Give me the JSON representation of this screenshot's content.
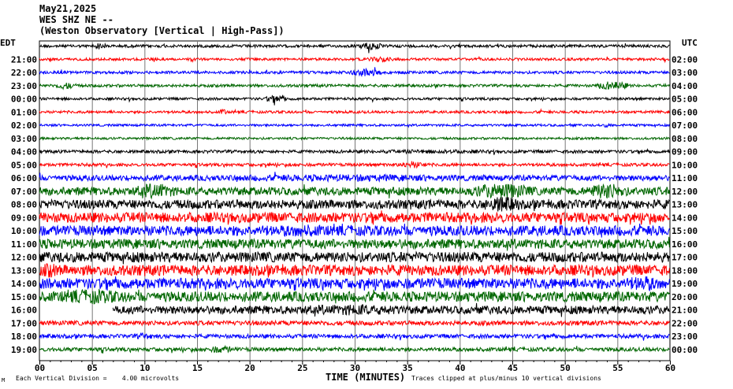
{
  "header": {
    "date": "May21,2025",
    "station": "WES SHZ NE --",
    "source": "(Weston Observatory [Vertical | High-Pass])"
  },
  "footer": {
    "division": "Each Vertical Division =    4.00 microvolts",
    "clip_note": "Traces clipped at plus/minus 10 vertical divisions",
    "corner_mark": "M"
  },
  "chart_data": {
    "type": "line",
    "title": "",
    "xlabel": "TIME (MINUTES)",
    "ylabel": "",
    "x_ticks": [
      "00",
      "05",
      "10",
      "15",
      "20",
      "25",
      "30",
      "35",
      "40",
      "45",
      "50",
      "55",
      "60"
    ],
    "xlim": [
      0,
      60
    ],
    "grid": true,
    "left_axis_label": "EDT",
    "right_axis_label": "UTC",
    "rows": [
      {
        "edt": "",
        "utc": "",
        "color": "#000000",
        "amp": 0.55,
        "events": [
          [
            5,
            6.5,
            2.5
          ],
          [
            30.5,
            32.5,
            3.5
          ]
        ]
      },
      {
        "edt": "21:00",
        "utc": "02:00",
        "color": "#ff0000",
        "amp": 0.5,
        "events": [
          [
            31,
            34,
            2.4
          ]
        ]
      },
      {
        "edt": "22:00",
        "utc": "03:00",
        "color": "#0000ff",
        "amp": 0.55,
        "events": [
          [
            29.5,
            32.5,
            3.2
          ]
        ]
      },
      {
        "edt": "23:00",
        "utc": "04:00",
        "color": "#006600",
        "amp": 0.55,
        "events": [
          [
            1.5,
            3.5,
            2.8
          ],
          [
            53,
            56,
            3.5
          ]
        ]
      },
      {
        "edt": "00:00",
        "utc": "05:00",
        "color": "#000000",
        "amp": 0.5,
        "events": [
          [
            21.5,
            23.5,
            3.2
          ]
        ]
      },
      {
        "edt": "01:00",
        "utc": "06:00",
        "color": "#ff0000",
        "amp": 0.5,
        "events": [
          [
            17.2,
            17.8,
            3.0
          ],
          [
            44.3,
            44.7,
            2.2
          ]
        ]
      },
      {
        "edt": "02:00",
        "utc": "07:00",
        "color": "#0000ff",
        "amp": 0.45,
        "events": [
          [
            53.5,
            54.5,
            2.0
          ]
        ]
      },
      {
        "edt": "03:00",
        "utc": "08:00",
        "color": "#006600",
        "amp": 0.45,
        "events": []
      },
      {
        "edt": "04:00",
        "utc": "09:00",
        "color": "#000000",
        "amp": 0.6,
        "events": [
          [
            25,
            50,
            1.4
          ]
        ]
      },
      {
        "edt": "05:00",
        "utc": "10:00",
        "color": "#ff0000",
        "amp": 0.6,
        "events": [
          [
            34,
            37,
            2.4
          ]
        ]
      },
      {
        "edt": "06:00",
        "utc": "11:00",
        "color": "#0000ff",
        "amp": 1.1,
        "events": [
          [
            0,
            60,
            1.3
          ]
        ]
      },
      {
        "edt": "07:00",
        "utc": "12:00",
        "color": "#006600",
        "amp": 1.6,
        "events": [
          [
            9,
            13,
            2.2
          ],
          [
            41,
            47,
            2.2
          ],
          [
            52,
            56,
            2.2
          ]
        ]
      },
      {
        "edt": "08:00",
        "utc": "13:00",
        "color": "#000000",
        "amp": 1.8,
        "events": [
          [
            42,
            46,
            2.0
          ]
        ]
      },
      {
        "edt": "09:00",
        "utc": "14:00",
        "color": "#ff0000",
        "amp": 2.0,
        "events": []
      },
      {
        "edt": "10:00",
        "utc": "15:00",
        "color": "#0000ff",
        "amp": 2.0,
        "events": [
          [
            20,
            30,
            1.3
          ]
        ]
      },
      {
        "edt": "11:00",
        "utc": "16:00",
        "color": "#006600",
        "amp": 1.9,
        "events": []
      },
      {
        "edt": "12:00",
        "utc": "17:00",
        "color": "#000000",
        "amp": 2.0,
        "events": []
      },
      {
        "edt": "13:00",
        "utc": "18:00",
        "color": "#ff0000",
        "amp": 2.1,
        "events": [
          [
            0,
            2,
            1.6
          ]
        ]
      },
      {
        "edt": "14:00",
        "utc": "19:00",
        "color": "#0000ff",
        "amp": 2.1,
        "events": [
          [
            55,
            60,
            1.5
          ]
        ]
      },
      {
        "edt": "15:00",
        "utc": "20:00",
        "color": "#006600",
        "amp": 2.0,
        "events": [
          [
            0,
            10,
            1.5
          ]
        ]
      },
      {
        "edt": "16:00",
        "utc": "21:00",
        "color": "#000000",
        "amp": 1.6,
        "events": [
          [
            20,
            40,
            1.4
          ]
        ],
        "start": 7
      },
      {
        "edt": "17:00",
        "utc": "22:00",
        "color": "#ff0000",
        "amp": 0.9,
        "events": []
      },
      {
        "edt": "18:00",
        "utc": "23:00",
        "color": "#0000ff",
        "amp": 0.8,
        "events": [
          [
            9,
            11,
            1.8
          ]
        ]
      },
      {
        "edt": "19:00",
        "utc": "00:00",
        "color": "#006600",
        "amp": 0.75,
        "events": [
          [
            16,
            18.5,
            2.2
          ]
        ]
      }
    ]
  }
}
